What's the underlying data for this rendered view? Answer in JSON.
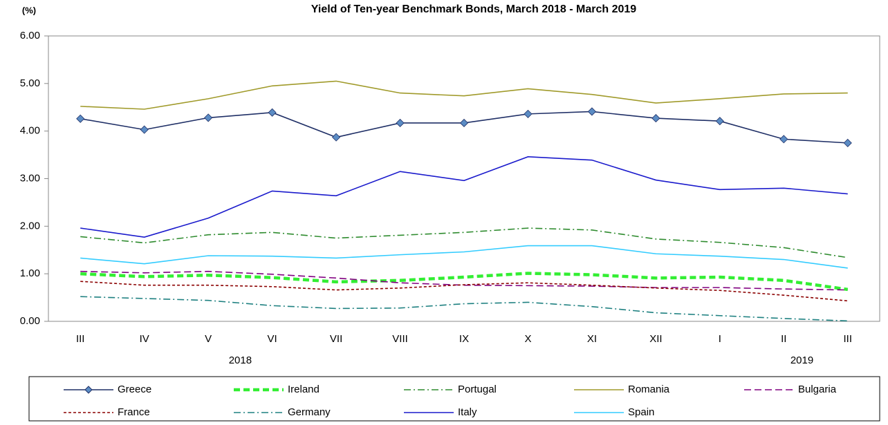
{
  "chart_data": {
    "type": "line",
    "title": "Yield of Ten-year Benchmark Bonds, March 2018 - March 2019",
    "y_label": "(%)",
    "categories": [
      "III",
      "IV",
      "V",
      "VI",
      "VII",
      "VIII",
      "IX",
      "X",
      "XI",
      "XII",
      "I",
      "II",
      "III"
    ],
    "year_labels": [
      "2018",
      "2019"
    ],
    "ylim": [
      0,
      6
    ],
    "yticks": [
      {
        "value": 0,
        "label": "0.00"
      },
      {
        "value": 1,
        "label": "1.00"
      },
      {
        "value": 2,
        "label": "2.00"
      },
      {
        "value": 3,
        "label": "3.00"
      },
      {
        "value": 4,
        "label": "4.00"
      },
      {
        "value": 5,
        "label": "5.00"
      },
      {
        "value": 6,
        "label": "6.00"
      }
    ],
    "grid": false,
    "series": [
      {
        "name": "Greece",
        "color": "#1f2f66",
        "style": "solid",
        "marker": "diamond",
        "values": [
          4.26,
          4.03,
          4.28,
          4.39,
          3.87,
          4.17,
          4.17,
          4.36,
          4.41,
          4.27,
          4.21,
          3.83,
          3.75
        ]
      },
      {
        "name": "Ireland",
        "color": "#33ee33",
        "style": "thickdash",
        "values": [
          1.0,
          0.94,
          0.97,
          0.92,
          0.83,
          0.86,
          0.93,
          1.01,
          0.98,
          0.91,
          0.93,
          0.86,
          0.67
        ]
      },
      {
        "name": "Portugal",
        "color": "#2e8b2e",
        "style": "dashdot",
        "values": [
          1.78,
          1.65,
          1.82,
          1.87,
          1.75,
          1.81,
          1.87,
          1.96,
          1.92,
          1.73,
          1.66,
          1.55,
          1.34
        ]
      },
      {
        "name": "Romania",
        "color": "#a09a2a",
        "style": "solid",
        "values": [
          4.52,
          4.46,
          4.68,
          4.95,
          5.05,
          4.8,
          4.74,
          4.89,
          4.77,
          4.59,
          4.68,
          4.78,
          4.8
        ]
      },
      {
        "name": "Bulgaria",
        "color": "#800080",
        "style": "dash",
        "values": [
          1.05,
          1.02,
          1.05,
          0.99,
          0.91,
          0.81,
          0.76,
          0.75,
          0.74,
          0.71,
          0.71,
          0.68,
          0.66
        ]
      },
      {
        "name": "France",
        "color": "#8b0000",
        "style": "dot",
        "values": [
          0.84,
          0.76,
          0.76,
          0.73,
          0.66,
          0.7,
          0.77,
          0.81,
          0.76,
          0.7,
          0.65,
          0.55,
          0.43
        ]
      },
      {
        "name": "Germany",
        "color": "#1e8080",
        "style": "dashdot",
        "values": [
          0.52,
          0.48,
          0.44,
          0.33,
          0.27,
          0.28,
          0.37,
          0.4,
          0.31,
          0.18,
          0.12,
          0.06,
          0.01
        ]
      },
      {
        "name": "Italy",
        "color": "#1a1acc",
        "style": "solid",
        "values": [
          1.96,
          1.77,
          2.17,
          2.74,
          2.64,
          3.15,
          2.96,
          3.46,
          3.39,
          2.97,
          2.77,
          2.8,
          2.68
        ]
      },
      {
        "name": "Spain",
        "color": "#33ccff",
        "style": "solid",
        "values": [
          1.33,
          1.21,
          1.38,
          1.37,
          1.33,
          1.4,
          1.46,
          1.59,
          1.59,
          1.42,
          1.37,
          1.3,
          1.12
        ]
      }
    ]
  }
}
